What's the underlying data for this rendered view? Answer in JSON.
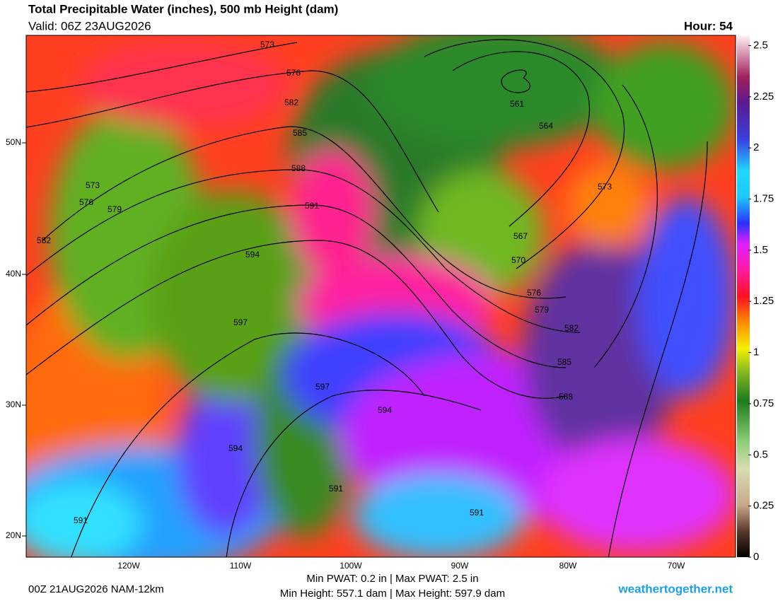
{
  "header": {
    "title": "Total Precipitable Water (inches), 500 mb Height (dam)",
    "valid": "Valid: 06Z 23AUG2026",
    "hour": "Hour: 54"
  },
  "map": {
    "latitudes": [
      "50N",
      "40N",
      "30N",
      "20N"
    ],
    "longitudes": [
      "120W",
      "110W",
      "100W",
      "90W",
      "80W",
      "70W"
    ],
    "contour_labels": [
      "573",
      "576",
      "582",
      "585",
      "588",
      "591",
      "594",
      "597",
      "597",
      "594",
      "594",
      "591",
      "591",
      "561",
      "564",
      "567",
      "570",
      "573",
      "576",
      "579",
      "582",
      "585",
      "588",
      "573",
      "576",
      "579",
      "582",
      "591"
    ]
  },
  "colorbar": {
    "lim": [
      0,
      2.55
    ],
    "ticks": [
      0,
      0.25,
      0.5,
      0.75,
      1,
      1.25,
      1.5,
      1.75,
      2,
      2.25,
      2.5
    ]
  },
  "footer": {
    "run": "00Z 21AUG2026 NAM-12km",
    "pwat": "Min PWAT:   0.2 in | Max PWAT:   2.5 in",
    "height": "Min Height: 557.1 dam | Max Height: 597.9 dam",
    "site": "weathertogether.net"
  }
}
